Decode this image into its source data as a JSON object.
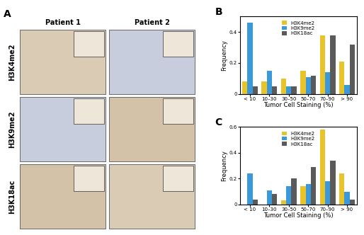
{
  "image_panel": {
    "label": "A",
    "columns": [
      "Patient 1",
      "Patient 2"
    ],
    "rows": [
      "H3K4me2",
      "H3K9me2",
      "H3K18ac"
    ]
  },
  "chart_data": [
    {
      "type": "bar",
      "title": "B",
      "x_label": "Tumor Cell Staining (%)",
      "y_label": "Frequency",
      "categories": [
        "< 10",
        "10–30",
        "30–50",
        "50–70",
        "70–90",
        "> 90"
      ],
      "series": [
        {
          "name": "H3K4me2",
          "color": "#e8c32a",
          "values": [
            0.08,
            0.08,
            0.1,
            0.15,
            0.38,
            0.21
          ]
        },
        {
          "name": "H3K9me2",
          "color": "#3a9ad9",
          "values": [
            0.46,
            0.15,
            0.05,
            0.11,
            0.14,
            0.06
          ]
        },
        {
          "name": "H3K18ac",
          "color": "#5a5a5a",
          "values": [
            0.05,
            0.05,
            0.05,
            0.12,
            0.38,
            0.32
          ]
        }
      ],
      "ylim": [
        0,
        0.5
      ],
      "yticks": [
        0,
        0.2,
        0.4
      ],
      "legend": "upper center"
    },
    {
      "type": "bar",
      "title": "C",
      "x_label": "Tumor Cell Staining (%)",
      "y_label": "Frequency",
      "categories": [
        "< 10",
        "10–30",
        "30–50",
        "50–70",
        "70–90",
        "> 90"
      ],
      "series": [
        {
          "name": "H3K4me2",
          "color": "#e8c32a",
          "values": [
            0,
            0,
            0.03,
            0.14,
            0.58,
            0.24
          ]
        },
        {
          "name": "H3K9me2",
          "color": "#3a9ad9",
          "values": [
            0.24,
            0.11,
            0.14,
            0.16,
            0.18,
            0.1
          ]
        },
        {
          "name": "H3K18ac",
          "color": "#5a5a5a",
          "values": [
            0.04,
            0.08,
            0.2,
            0.29,
            0.34,
            0.04
          ]
        }
      ],
      "ylim": [
        0,
        0.6
      ],
      "yticks": [
        0,
        0.2,
        0.4,
        0.6
      ],
      "legend": "upper center"
    }
  ]
}
